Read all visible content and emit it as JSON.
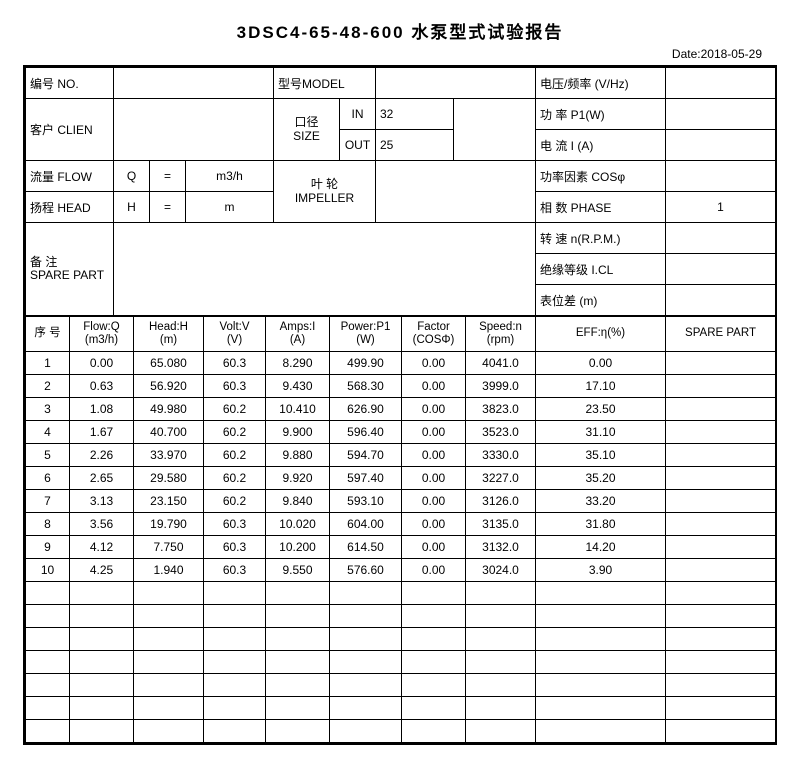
{
  "title": "3DSC4-65-48-600 水泵型式试验报告",
  "date_label": "Date:2018-05-29",
  "header": {
    "no_label": "编号 NO.",
    "no_value": "",
    "model_label": "型号MODEL",
    "model_value": "",
    "volt_freq_label": "电压/频率 (V/Hz)",
    "volt_freq_value": "",
    "client_label": "客户 CLIEN",
    "client_value": "",
    "size_label_top": "口径",
    "size_label_bot": "SIZE",
    "size_in_label": "IN",
    "size_in_value": "32",
    "size_out_label": "OUT",
    "size_out_value": "25",
    "power_label": "功 率   P1(W)",
    "power_value": "",
    "current_label": "电 流   I (A)",
    "current_value": "",
    "flow_label": "流量 FLOW",
    "flow_sym": "Q",
    "flow_eq": "=",
    "flow_unit": "m3/h",
    "head_label": "扬程 HEAD",
    "head_sym": "H",
    "head_eq": "=",
    "head_unit": "m",
    "impeller_top": "叶 轮",
    "impeller_bot": "IMPELLER",
    "impeller_value": "",
    "pf_label": "功率因素 COSφ",
    "pf_value": "",
    "phase_label": "相 数   PHASE",
    "phase_value": "1",
    "spare_top": "备 注",
    "spare_bot": "SPARE PART",
    "spare_value": "",
    "rpm_label": "转 速 n(R.P.M.)",
    "rpm_value": "",
    "icl_label": "绝缘等级  I.CL",
    "icl_value": "",
    "elev_label": "表位差 (m)",
    "elev_value": ""
  },
  "columns": {
    "c0": "序 号",
    "c1a": "Flow:Q",
    "c1b": "(m3/h)",
    "c2a": "Head:H",
    "c2b": "(m)",
    "c3a": "Volt:V",
    "c3b": "(V)",
    "c4a": "Amps:I",
    "c4b": "(A)",
    "c5a": "Power:P1",
    "c5b": "(W)",
    "c6a": "Factor",
    "c6b": "(COSΦ)",
    "c7a": "Speed:n",
    "c7b": "(rpm)",
    "c8": "EFF:η(%)",
    "c9": "SPARE PART"
  },
  "rows": [
    {
      "n": "1",
      "q": "0.00",
      "h": "65.080",
      "v": "60.3",
      "a": "8.290",
      "p": "499.90",
      "f": "0.00",
      "s": "4041.0",
      "e": "0.00",
      "sp": ""
    },
    {
      "n": "2",
      "q": "0.63",
      "h": "56.920",
      "v": "60.3",
      "a": "9.430",
      "p": "568.30",
      "f": "0.00",
      "s": "3999.0",
      "e": "17.10",
      "sp": ""
    },
    {
      "n": "3",
      "q": "1.08",
      "h": "49.980",
      "v": "60.2",
      "a": "10.410",
      "p": "626.90",
      "f": "0.00",
      "s": "3823.0",
      "e": "23.50",
      "sp": ""
    },
    {
      "n": "4",
      "q": "1.67",
      "h": "40.700",
      "v": "60.2",
      "a": "9.900",
      "p": "596.40",
      "f": "0.00",
      "s": "3523.0",
      "e": "31.10",
      "sp": ""
    },
    {
      "n": "5",
      "q": "2.26",
      "h": "33.970",
      "v": "60.2",
      "a": "9.880",
      "p": "594.70",
      "f": "0.00",
      "s": "3330.0",
      "e": "35.10",
      "sp": ""
    },
    {
      "n": "6",
      "q": "2.65",
      "h": "29.580",
      "v": "60.2",
      "a": "9.920",
      "p": "597.40",
      "f": "0.00",
      "s": "3227.0",
      "e": "35.20",
      "sp": ""
    },
    {
      "n": "7",
      "q": "3.13",
      "h": "23.150",
      "v": "60.2",
      "a": "9.840",
      "p": "593.10",
      "f": "0.00",
      "s": "3126.0",
      "e": "33.20",
      "sp": ""
    },
    {
      "n": "8",
      "q": "3.56",
      "h": "19.790",
      "v": "60.3",
      "a": "10.020",
      "p": "604.00",
      "f": "0.00",
      "s": "3135.0",
      "e": "31.80",
      "sp": ""
    },
    {
      "n": "9",
      "q": "4.12",
      "h": "7.750",
      "v": "60.3",
      "a": "10.200",
      "p": "614.50",
      "f": "0.00",
      "s": "3132.0",
      "e": "14.20",
      "sp": ""
    },
    {
      "n": "10",
      "q": "4.25",
      "h": "1.940",
      "v": "60.3",
      "a": "9.550",
      "p": "576.60",
      "f": "0.00",
      "s": "3024.0",
      "e": "3.90",
      "sp": ""
    }
  ],
  "blank_rows": 7
}
